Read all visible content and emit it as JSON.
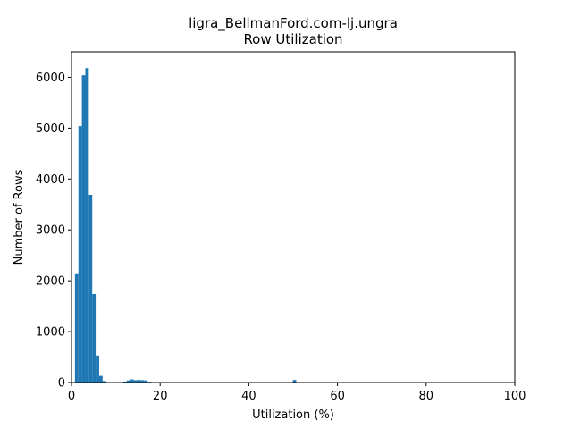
{
  "chart_data": {
    "type": "bar",
    "title": "ligra_BellmanFord.com-lj.ungra",
    "subtitle": "Row Utilization",
    "xlabel": "Utilization (%)",
    "ylabel": "Number of Rows",
    "xlim": [
      0,
      100
    ],
    "ylim": [
      0,
      6500
    ],
    "xticks": [
      0,
      20,
      40,
      60,
      80,
      100
    ],
    "yticks": [
      0,
      1000,
      2000,
      3000,
      4000,
      5000,
      6000
    ],
    "grid": false,
    "bar_color": "#1f77b4",
    "bin_width": 0.78,
    "bins": [
      {
        "x": 0.78,
        "y": 2130
      },
      {
        "x": 1.56,
        "y": 5040
      },
      {
        "x": 2.34,
        "y": 6040
      },
      {
        "x": 3.12,
        "y": 6180
      },
      {
        "x": 3.9,
        "y": 3690
      },
      {
        "x": 4.68,
        "y": 1740
      },
      {
        "x": 5.46,
        "y": 530
      },
      {
        "x": 6.24,
        "y": 130
      },
      {
        "x": 7.02,
        "y": 30
      },
      {
        "x": 11.7,
        "y": 20
      },
      {
        "x": 12.48,
        "y": 40
      },
      {
        "x": 13.26,
        "y": 60
      },
      {
        "x": 14.04,
        "y": 45
      },
      {
        "x": 14.82,
        "y": 50
      },
      {
        "x": 15.6,
        "y": 45
      },
      {
        "x": 16.38,
        "y": 40
      },
      {
        "x": 17.16,
        "y": 15
      },
      {
        "x": 49.92,
        "y": 50
      }
    ]
  }
}
